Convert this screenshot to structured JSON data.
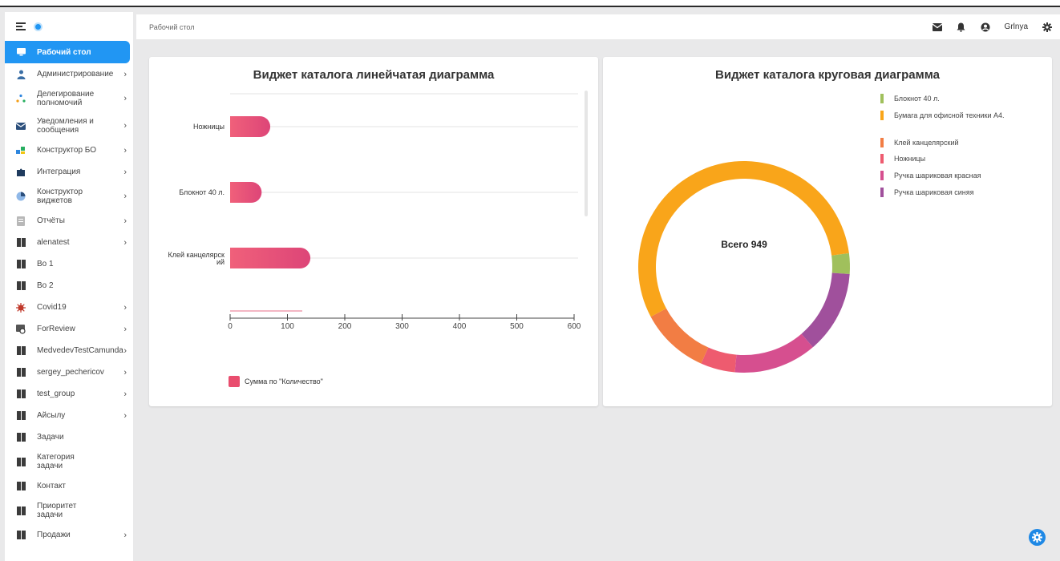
{
  "header": {
    "breadcrumb": "Рабочий стол",
    "username": "Grlnya"
  },
  "sidebar": {
    "items": [
      {
        "label": "Рабочий стол",
        "icon": "monitor-icon",
        "active": true,
        "arrow": false
      },
      {
        "label": "Администрирование",
        "icon": "admin-icon",
        "arrow": true
      },
      {
        "label": "Делегирование полномочий",
        "icon": "delegation-icon",
        "arrow": true
      },
      {
        "label": "Уведомления и сообщения",
        "icon": "mail-icon",
        "arrow": true
      },
      {
        "label": "Конструктор БО",
        "icon": "constructor-icon",
        "arrow": true
      },
      {
        "label": "Интеграция",
        "icon": "puzzle-icon",
        "arrow": true
      },
      {
        "label": "Конструктор виджетов",
        "icon": "widget-icon",
        "arrow": true
      },
      {
        "label": "Отчёты",
        "icon": "report-icon",
        "arrow": true
      },
      {
        "label": "alenatest",
        "icon": "building-icon",
        "arrow": true
      },
      {
        "label": "Bo 1",
        "icon": "building-icon",
        "arrow": false
      },
      {
        "label": "Bo 2",
        "icon": "building-icon",
        "arrow": false
      },
      {
        "label": "Covid19",
        "icon": "virus-icon",
        "arrow": true
      },
      {
        "label": "ForReview",
        "icon": "review-icon",
        "arrow": true
      },
      {
        "label": "MedvedevTestCamunda",
        "icon": "building-icon",
        "arrow": true
      },
      {
        "label": "sergey_pechericov",
        "icon": "building-icon",
        "arrow": true
      },
      {
        "label": "test_group",
        "icon": "building-icon",
        "arrow": true
      },
      {
        "label": "Айсылу",
        "icon": "building-icon",
        "arrow": true
      },
      {
        "label": "Задачи",
        "icon": "building-icon",
        "arrow": false
      },
      {
        "label": "Категория задачи",
        "icon": "building-icon",
        "arrow": false
      },
      {
        "label": "Контакт",
        "icon": "building-icon",
        "arrow": false
      },
      {
        "label": "Приоритет задачи",
        "icon": "building-icon",
        "arrow": false
      },
      {
        "label": "Продажи",
        "icon": "building-icon",
        "arrow": true
      }
    ],
    "arrow_glyph": "›"
  },
  "bar_widget": {
    "title": "Виджет каталога линейчатая диаграмма"
  },
  "pie_widget": {
    "title": "Виджет каталога круговая диаграмма",
    "center_label": "Всего 949"
  },
  "chart_data": [
    {
      "type": "bar",
      "orientation": "horizontal",
      "title": "Виджет каталога линейчатая диаграмма",
      "categories": [
        "Ножницы",
        "Блокнот 40 л.",
        "Клей канцелярский"
      ],
      "series": [
        {
          "name": "Сумма по \"Количество\"",
          "values": [
            70,
            55,
            140
          ],
          "color": "#e94d6e"
        }
      ],
      "xlim": [
        0,
        600
      ],
      "xticks": [
        0,
        100,
        200,
        300,
        400,
        500,
        600
      ],
      "legend_position": "bottom-left",
      "grid": true
    },
    {
      "type": "pie",
      "donut": true,
      "title": "Виджет каталога круговая диаграмма",
      "center_text": "Всего 949",
      "total": 949,
      "slices": [
        {
          "label": "Блокнот 40 л.",
          "value": 30,
          "color": "#a0c05c"
        },
        {
          "label": "Ручка шариковая синяя",
          "value": 120,
          "color": "#a0509c"
        },
        {
          "label": "Ручка шариковая красная",
          "value": 120,
          "color": "#d64f8f"
        },
        {
          "label": "Ножницы",
          "value": 50,
          "color": "#ee5b6f"
        },
        {
          "label": "Клей канцелярский",
          "value": 100,
          "color": "#f27d44"
        },
        {
          "label": "Бумага для офисной техники А4.",
          "value": 529,
          "color": "#f9a51a"
        }
      ],
      "legend": [
        {
          "label": "Блокнот 40 л.",
          "color": "#a0c05c"
        },
        {
          "label": "Бумага для офисной техники А4.",
          "color": "#f9a51a"
        },
        {
          "label": "Клей канцелярский",
          "color": "#f27d44"
        },
        {
          "label": "Ножницы",
          "color": "#ee5b6f"
        },
        {
          "label": "Ручка шариковая красная",
          "color": "#d64f8f"
        },
        {
          "label": "Ручка шариковая синяя",
          "color": "#a0509c"
        }
      ],
      "legend_position": "top-right"
    }
  ]
}
